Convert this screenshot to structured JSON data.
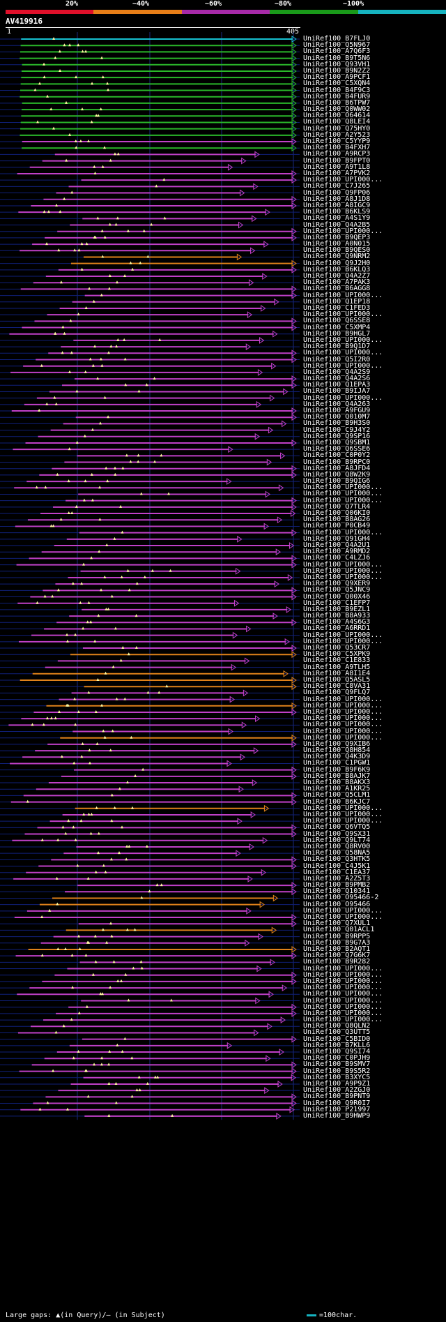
{
  "legend": {
    "labels": [
      "20%",
      "~40%",
      "~60%",
      "~80%",
      "~100%"
    ],
    "colors": [
      "#e0102a",
      "#e87e18",
      "#a72aa8",
      "#1a9a1a",
      "#16b3c0"
    ]
  },
  "query": {
    "id": "AV419916",
    "start": "1",
    "end": "405"
  },
  "hit_colors": {
    "cyan": "#16c0d0",
    "green": "#2ab82a",
    "magenta": "#c040c8",
    "orange": "#e0821a"
  },
  "hits": [
    {
      "id": "UniRef100_B7FLJ0",
      "c": "cyan"
    },
    {
      "id": "UniRef100_Q5N967",
      "c": "green"
    },
    {
      "id": "UniRef100_A7Q6F3",
      "c": "green"
    },
    {
      "id": "UniRef100_B9T5N6",
      "c": "green"
    },
    {
      "id": "UniRef100_Q93VH1",
      "c": "green"
    },
    {
      "id": "UniRef100_B9N2Z2",
      "c": "green"
    },
    {
      "id": "UniRef100_A9PCF1",
      "c": "green"
    },
    {
      "id": "UniRef100_C5XQN4",
      "c": "green"
    },
    {
      "id": "UniRef100_B4F9C3",
      "c": "green"
    },
    {
      "id": "UniRef100_B4FUR9",
      "c": "green"
    },
    {
      "id": "UniRef100_B6TPW7",
      "c": "green"
    },
    {
      "id": "UniRef100_Q0WW02",
      "c": "green"
    },
    {
      "id": "UniRef100_O64614",
      "c": "green"
    },
    {
      "id": "UniRef100_Q8LEI4",
      "c": "green"
    },
    {
      "id": "UniRef100_Q75HY0",
      "c": "green"
    },
    {
      "id": "UniRef100_A2Y523",
      "c": "green"
    },
    {
      "id": "UniRef100_C5YYP9",
      "c": "magenta"
    },
    {
      "id": "UniRef100_B4FXH7",
      "c": "green"
    },
    {
      "id": "UniRef100_A9RCP3",
      "c": "magenta"
    },
    {
      "id": "UniRef100_B9FPT0",
      "c": "magenta"
    },
    {
      "id": "UniRef100_A9T1L8",
      "c": "magenta"
    },
    {
      "id": "UniRef100_A7PVK2",
      "c": "magenta"
    },
    {
      "id": "UniRef100_UPI000...",
      "c": "magenta"
    },
    {
      "id": "UniRef100_C7J265",
      "c": "magenta"
    },
    {
      "id": "UniRef100_Q9FP06",
      "c": "magenta"
    },
    {
      "id": "UniRef100_A8J1D8",
      "c": "magenta"
    },
    {
      "id": "UniRef100_A8IGC9",
      "c": "magenta"
    },
    {
      "id": "UniRef100_B6KLS9",
      "c": "magenta"
    },
    {
      "id": "UniRef100_A4S1Y9",
      "c": "magenta"
    },
    {
      "id": "UniRef100_Q4A2B5",
      "c": "magenta"
    },
    {
      "id": "UniRef100_UPI000...",
      "c": "magenta"
    },
    {
      "id": "UniRef100_B9QEP3",
      "c": "magenta"
    },
    {
      "id": "UniRef100_A0N015",
      "c": "magenta"
    },
    {
      "id": "UniRef100_B9QES0",
      "c": "magenta"
    },
    {
      "id": "UniRef100_Q9NRM2",
      "c": "orange"
    },
    {
      "id": "UniRef100_Q9J2H0",
      "c": "orange"
    },
    {
      "id": "UniRef100_B6KLQ3",
      "c": "magenta"
    },
    {
      "id": "UniRef100_Q4A2Z7",
      "c": "magenta"
    },
    {
      "id": "UniRef100_A7PAK3",
      "c": "magenta"
    },
    {
      "id": "UniRef100_B6AGG8",
      "c": "magenta"
    },
    {
      "id": "UniRef100_UPI000...",
      "c": "magenta"
    },
    {
      "id": "UniRef100_Q1EP18",
      "c": "magenta"
    },
    {
      "id": "UniRef100_C1FED3",
      "c": "magenta"
    },
    {
      "id": "UniRef100_UPI000...",
      "c": "magenta"
    },
    {
      "id": "UniRef100_Q6SSE8",
      "c": "magenta"
    },
    {
      "id": "UniRef100_C5XMP4",
      "c": "magenta"
    },
    {
      "id": "UniRef100_B9HGL7",
      "c": "magenta"
    },
    {
      "id": "UniRef100_UPI000...",
      "c": "magenta"
    },
    {
      "id": "UniRef100_B9Q1D7",
      "c": "magenta"
    },
    {
      "id": "UniRef100_UPI000...",
      "c": "magenta"
    },
    {
      "id": "UniRef100_Q5I2R0",
      "c": "magenta"
    },
    {
      "id": "UniRef100_UPI000...",
      "c": "magenta"
    },
    {
      "id": "UniRef100_Q4A2S9",
      "c": "magenta"
    },
    {
      "id": "UniRef100_Q4A2S6",
      "c": "magenta"
    },
    {
      "id": "UniRef100_Q1EPA3",
      "c": "magenta"
    },
    {
      "id": "UniRef100_B9IJA7",
      "c": "magenta"
    },
    {
      "id": "UniRef100_UPI000...",
      "c": "magenta"
    },
    {
      "id": "UniRef100_Q4A263",
      "c": "magenta"
    },
    {
      "id": "UniRef100_A9FGU9",
      "c": "magenta"
    },
    {
      "id": "UniRef100_Q010M7",
      "c": "magenta"
    },
    {
      "id": "UniRef100_B9H3S0",
      "c": "magenta"
    },
    {
      "id": "UniRef100_C9J4Y2",
      "c": "magenta"
    },
    {
      "id": "UniRef100_Q9SP16",
      "c": "magenta"
    },
    {
      "id": "UniRef100_Q9SBM1",
      "c": "magenta"
    },
    {
      "id": "UniRef100_Q6SSE6",
      "c": "magenta"
    },
    {
      "id": "UniRef100_C0P0Y2",
      "c": "magenta"
    },
    {
      "id": "UniRef100_B9RPC0",
      "c": "magenta"
    },
    {
      "id": "UniRef100_A8JFD4",
      "c": "magenta"
    },
    {
      "id": "UniRef100_Q8W2K9",
      "c": "magenta"
    },
    {
      "id": "UniRef100_B9QIG6",
      "c": "magenta"
    },
    {
      "id": "UniRef100_UPI000...",
      "c": "magenta"
    },
    {
      "id": "UniRef100_UPI000...",
      "c": "magenta"
    },
    {
      "id": "UniRef100_UPI000...",
      "c": "magenta"
    },
    {
      "id": "UniRef100_Q7TLR4",
      "c": "magenta"
    },
    {
      "id": "UniRef100_Q06KI0",
      "c": "magenta"
    },
    {
      "id": "UniRef100_B8AG26",
      "c": "magenta"
    },
    {
      "id": "UniRef100_P0CB49",
      "c": "magenta"
    },
    {
      "id": "UniRef100_UPI000...",
      "c": "magenta"
    },
    {
      "id": "UniRef100_Q91GH4",
      "c": "magenta"
    },
    {
      "id": "UniRef100_Q4A2U1",
      "c": "magenta"
    },
    {
      "id": "UniRef100_A9RMD2",
      "c": "magenta"
    },
    {
      "id": "UniRef100_C4LZJ6",
      "c": "magenta"
    },
    {
      "id": "UniRef100_UPI000...",
      "c": "magenta"
    },
    {
      "id": "UniRef100_UPI000...",
      "c": "magenta"
    },
    {
      "id": "UniRef100_UPI000...",
      "c": "magenta"
    },
    {
      "id": "UniRef100_Q9XER9",
      "c": "magenta"
    },
    {
      "id": "UniRef100_Q5JNC9",
      "c": "magenta"
    },
    {
      "id": "UniRef100_Q00X46",
      "c": "magenta"
    },
    {
      "id": "UniRef100_C1EFP7",
      "c": "magenta"
    },
    {
      "id": "UniRef100_B9EZL1",
      "c": "magenta"
    },
    {
      "id": "UniRef100_B8A933",
      "c": "magenta"
    },
    {
      "id": "UniRef100_A4S6G3",
      "c": "magenta"
    },
    {
      "id": "UniRef100_A6RRD1",
      "c": "magenta"
    },
    {
      "id": "UniRef100_UPI000...",
      "c": "magenta"
    },
    {
      "id": "UniRef100_UPI000...",
      "c": "magenta"
    },
    {
      "id": "UniRef100_Q53CR7",
      "c": "magenta"
    },
    {
      "id": "UniRef100_C5XPK9",
      "c": "orange"
    },
    {
      "id": "UniRef100_C1E833",
      "c": "magenta"
    },
    {
      "id": "UniRef100_A9TLH5",
      "c": "magenta"
    },
    {
      "id": "UniRef100_A8I1E4",
      "c": "orange"
    },
    {
      "id": "UniRef100_Q5ASL5",
      "c": "orange"
    },
    {
      "id": "UniRef100_C8VA31",
      "c": "orange"
    },
    {
      "id": "UniRef100_Q9FLQ7",
      "c": "magenta"
    },
    {
      "id": "UniRef100_UPI000...",
      "c": "magenta"
    },
    {
      "id": "UniRef100_UPI000...",
      "c": "orange"
    },
    {
      "id": "UniRef100_UPI000...",
      "c": "magenta"
    },
    {
      "id": "UniRef100_UPI000...",
      "c": "magenta"
    },
    {
      "id": "UniRef100_UPI000...",
      "c": "magenta"
    },
    {
      "id": "UniRef100_UPI000...",
      "c": "magenta"
    },
    {
      "id": "UniRef100_UPI000...",
      "c": "orange"
    },
    {
      "id": "UniRef100_Q9XIB6",
      "c": "magenta"
    },
    {
      "id": "UniRef100_Q8H854",
      "c": "magenta"
    },
    {
      "id": "UniRef100_Q4K3D9",
      "c": "magenta"
    },
    {
      "id": "UniRef100_C1PGW1",
      "c": "magenta"
    },
    {
      "id": "UniRef100_B9F6K9",
      "c": "magenta"
    },
    {
      "id": "UniRef100_B8AJK7",
      "c": "magenta"
    },
    {
      "id": "UniRef100_B8AKX3",
      "c": "magenta"
    },
    {
      "id": "UniRef100_A1KR25",
      "c": "magenta"
    },
    {
      "id": "UniRef100_Q5CLM1",
      "c": "magenta"
    },
    {
      "id": "UniRef100_B6KJC7",
      "c": "magenta"
    },
    {
      "id": "UniRef100_UPI000...",
      "c": "orange"
    },
    {
      "id": "UniRef100_UPI000...",
      "c": "magenta"
    },
    {
      "id": "UniRef100_UPI000...",
      "c": "magenta"
    },
    {
      "id": "UniRef100_Q6VTQ5",
      "c": "magenta"
    },
    {
      "id": "UniRef100_Q9SX31",
      "c": "magenta"
    },
    {
      "id": "UniRef100_Q9LT74",
      "c": "magenta"
    },
    {
      "id": "UniRef100_Q8RV00",
      "c": "magenta"
    },
    {
      "id": "UniRef100_Q58NA5",
      "c": "magenta"
    },
    {
      "id": "UniRef100_Q3HTK5",
      "c": "magenta"
    },
    {
      "id": "UniRef100_C4J5K1",
      "c": "magenta"
    },
    {
      "id": "UniRef100_C1EA37",
      "c": "magenta"
    },
    {
      "id": "UniRef100_A2Z5T3",
      "c": "magenta"
    },
    {
      "id": "UniRef100_B9PMB2",
      "c": "magenta"
    },
    {
      "id": "UniRef100_Q10341",
      "c": "magenta"
    },
    {
      "id": "UniRef100_O95466-2",
      "c": "orange"
    },
    {
      "id": "UniRef100_O95466",
      "c": "orange"
    },
    {
      "id": "UniRef100_UPI000...",
      "c": "magenta"
    },
    {
      "id": "UniRef100_UPI000...",
      "c": "magenta"
    },
    {
      "id": "UniRef100_Q7XUL1",
      "c": "magenta"
    },
    {
      "id": "UniRef100_Q01ACL1",
      "c": "orange"
    },
    {
      "id": "UniRef100_B9RPP5",
      "c": "magenta"
    },
    {
      "id": "UniRef100_B9G7A3",
      "c": "magenta"
    },
    {
      "id": "UniRef100_B2AQT1",
      "c": "orange"
    },
    {
      "id": "UniRef100_Q7G6K7",
      "c": "magenta"
    },
    {
      "id": "UniRef100_B9R282",
      "c": "magenta"
    },
    {
      "id": "UniRef100_UPI000...",
      "c": "magenta"
    },
    {
      "id": "UniRef100_UPI000...",
      "c": "magenta"
    },
    {
      "id": "UniRef100_UPI000...",
      "c": "magenta"
    },
    {
      "id": "UniRef100_UPI000...",
      "c": "magenta"
    },
    {
      "id": "UniRef100_UPI000...",
      "c": "magenta"
    },
    {
      "id": "UniRef100_UPI000...",
      "c": "magenta"
    },
    {
      "id": "UniRef100_UPI000...",
      "c": "magenta"
    },
    {
      "id": "UniRef100_UPI000...",
      "c": "magenta"
    },
    {
      "id": "UniRef100_UPI000...",
      "c": "magenta"
    },
    {
      "id": "UniRef100_Q8QLN2",
      "c": "magenta"
    },
    {
      "id": "UniRef100_Q3UTT5",
      "c": "magenta"
    },
    {
      "id": "UniRef100_C5BID0",
      "c": "magenta"
    },
    {
      "id": "UniRef100_B7KLL6",
      "c": "magenta"
    },
    {
      "id": "UniRef100_Q9SI74",
      "c": "magenta"
    },
    {
      "id": "UniRef100_C0PJH9",
      "c": "magenta"
    },
    {
      "id": "UniRef100_B9SMV7",
      "c": "magenta"
    },
    {
      "id": "UniRef100_B9S5R2",
      "c": "magenta"
    },
    {
      "id": "UniRef100_B3XYC5",
      "c": "magenta"
    },
    {
      "id": "UniRef100_A9P9Z1",
      "c": "magenta"
    },
    {
      "id": "UniRef100_A2ZGJ0",
      "c": "magenta"
    },
    {
      "id": "UniRef100_B9PNT9",
      "c": "magenta"
    },
    {
      "id": "UniRef100_Q9R0I7",
      "c": "magenta"
    },
    {
      "id": "UniRef100_P21997",
      "c": "magenta"
    },
    {
      "id": "UniRef100_B9HWP9",
      "c": "magenta"
    }
  ],
  "footer": {
    "gaps": "Large gaps: ▲(in Query)/– (in Subject)",
    "scale": "=100char."
  }
}
